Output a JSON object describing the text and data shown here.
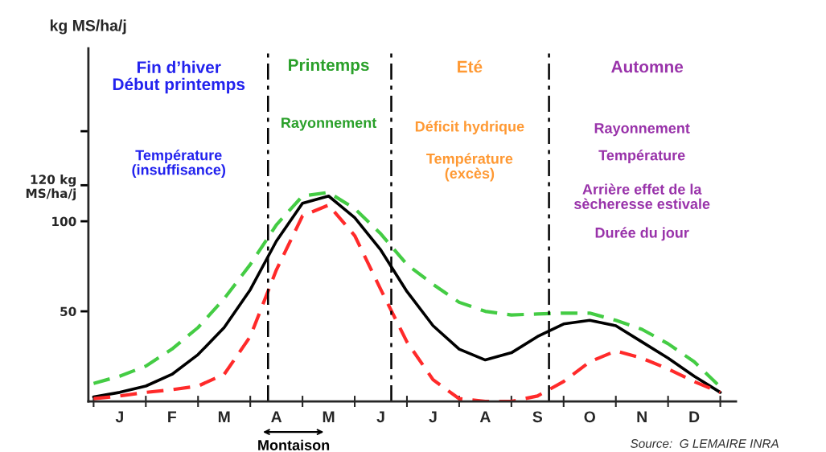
{
  "chart_data": {
    "type": "line",
    "ylabel": "kg MS/ha/j",
    "categories": [
      null,
      "J",
      null,
      "F",
      null,
      "M",
      null,
      "A",
      null,
      "M",
      null,
      "J",
      null,
      "J",
      null,
      "A",
      null,
      "S",
      null,
      "O",
      null,
      "N",
      null,
      "D",
      null
    ],
    "ylim": [
      0,
      196
    ],
    "yticks": [
      50,
      100,
      {
        "value": 120,
        "label": "120 kg\nMS/ha/j"
      },
      {
        "value": 150,
        "label": null
      }
    ],
    "grid": false,
    "legend": false,
    "marker": "none",
    "series": [
      {
        "color": "#000000",
        "line_style": "solid",
        "values": [
          2.5,
          5,
          8.5,
          15,
          26,
          41,
          62,
          89,
          110,
          114,
          102,
          84,
          61,
          42,
          29,
          23,
          27,
          36,
          43,
          45,
          42,
          33,
          24,
          14,
          5
        ]
      },
      {
        "color": "#44cc44",
        "line_style": "dashed",
        "values": [
          10,
          14,
          19.6,
          29,
          41,
          57,
          76,
          98,
          114,
          116,
          107,
          93,
          76,
          65,
          55,
          50,
          48,
          48.5,
          49,
          49,
          45,
          40,
          32,
          22,
          8
        ]
      },
      {
        "color": "#ff2a2a",
        "line_style": "dashed",
        "values": [
          1.5,
          3,
          5,
          6.5,
          8.5,
          15,
          36,
          73,
          103,
          109,
          92,
          62,
          33,
          12,
          1.5,
          0,
          0,
          3,
          11,
          22,
          28,
          24,
          18,
          11,
          5
        ]
      }
    ],
    "annotations": [
      "Fin d’hiver\nDébut printemps",
      "Printemps",
      "Eté",
      "Automne",
      "Température\n(insuffisance)",
      "Rayonnement",
      "Déficit hydrique",
      "Température\n(excès)",
      "Rayonnement",
      "Température",
      "Arrière effet de la\nsècheresse estivale",
      "Durée du jour",
      "Montaison",
      "Source:  G LEMAIRE INRA"
    ]
  }
}
